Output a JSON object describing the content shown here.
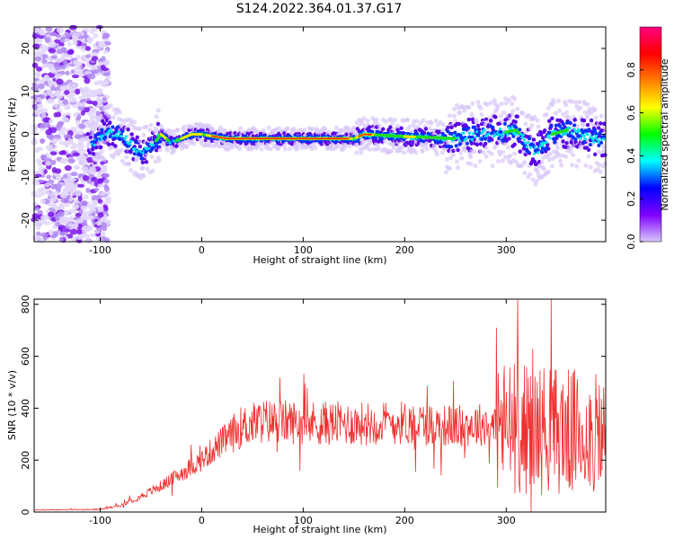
{
  "title": "S124.2022.364.01.37.G17",
  "chart_data": [
    {
      "type": "heatmap",
      "xlabel": "Height of straight line (km)",
      "ylabel": "Frequency (Hz)",
      "xlim": [
        -165,
        398
      ],
      "ylim": [
        -25,
        25
      ],
      "xticks": [
        -100,
        0,
        100,
        200,
        300
      ],
      "yticks": [
        -20,
        -10,
        0,
        10,
        20
      ],
      "colorbar": {
        "label": "Normalized spectral amplitude",
        "range": [
          0,
          1
        ],
        "ticks": [
          0.0,
          0.2,
          0.4,
          0.6,
          0.8
        ],
        "colors": [
          "#d9c8f8",
          "#7f00ff",
          "#0000ff",
          "#00ffff",
          "#00ff00",
          "#ffff00",
          "#ff7f00",
          "#ff0000",
          "#ff0080"
        ]
      },
      "ridge": {
        "x": [
          -110,
          -95,
          -80,
          -70,
          -60,
          -50,
          -40,
          -30,
          -20,
          -10,
          0,
          25,
          50,
          100,
          150,
          160,
          200,
          250,
          275,
          300,
          310,
          320,
          330,
          345,
          360,
          380,
          398
        ],
        "y": [
          -3,
          0.5,
          0,
          -2,
          -4.5,
          -3,
          0,
          -2,
          -1,
          0,
          0,
          -1,
          -1,
          -1,
          -1,
          0,
          -0.5,
          -1,
          0,
          0.5,
          1,
          -2,
          -4,
          0,
          1,
          -0.5,
          -1.5
        ]
      },
      "noise_region": [
        -165,
        -100
      ]
    },
    {
      "type": "line",
      "xlabel": "Height of straight line (km)",
      "ylabel": "SNR (10 * v/v)",
      "xlim": [
        -165,
        398
      ],
      "ylim": [
        0,
        820
      ],
      "xticks": [
        -100,
        0,
        100,
        200,
        300
      ],
      "yticks": [
        0,
        200,
        400,
        600,
        800
      ],
      "color": "#ef3030",
      "envelope": {
        "x": [
          -165,
          -100,
          -80,
          -60,
          -40,
          -20,
          0,
          20,
          40,
          60,
          100,
          150,
          200,
          250,
          280,
          300,
          320,
          340,
          360,
          380,
          398
        ],
        "y": [
          8,
          10,
          25,
          60,
          100,
          150,
          200,
          270,
          330,
          350,
          345,
          340,
          345,
          330,
          340,
          330,
          320,
          320,
          310,
          300,
          290
        ]
      }
    }
  ]
}
